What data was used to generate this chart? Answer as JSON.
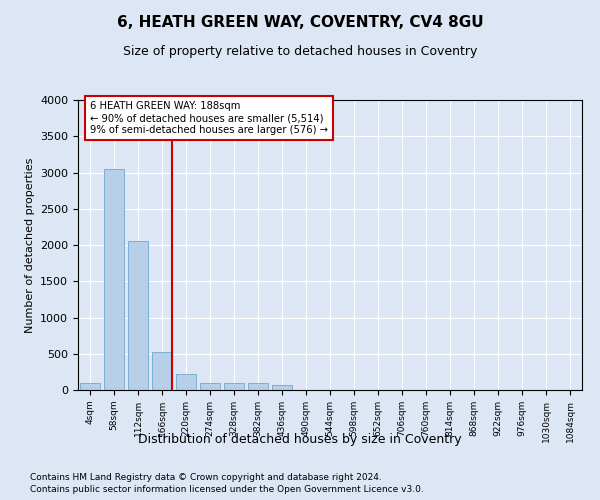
{
  "title": "6, HEATH GREEN WAY, COVENTRY, CV4 8GU",
  "subtitle": "Size of property relative to detached houses in Coventry",
  "xlabel": "Distribution of detached houses by size in Coventry",
  "ylabel": "Number of detached properties",
  "bin_labels": [
    "4sqm",
    "58sqm",
    "112sqm",
    "166sqm",
    "220sqm",
    "274sqm",
    "328sqm",
    "382sqm",
    "436sqm",
    "490sqm",
    "544sqm",
    "598sqm",
    "652sqm",
    "706sqm",
    "760sqm",
    "814sqm",
    "868sqm",
    "922sqm",
    "976sqm",
    "1030sqm",
    "1084sqm"
  ],
  "bar_heights": [
    100,
    3050,
    2050,
    530,
    220,
    90,
    90,
    90,
    70,
    0,
    0,
    0,
    0,
    0,
    0,
    0,
    0,
    0,
    0,
    0,
    0
  ],
  "bar_color": "#b8cfe8",
  "bar_edge_color": "#7aaed4",
  "vline_color": "#cc0000",
  "ylim": [
    0,
    4000
  ],
  "yticks": [
    0,
    500,
    1000,
    1500,
    2000,
    2500,
    3000,
    3500,
    4000
  ],
  "annotation_text": "6 HEATH GREEN WAY: 188sqm\n← 90% of detached houses are smaller (5,514)\n9% of semi-detached houses are larger (576) →",
  "annotation_box_color": "#cc0000",
  "footer_line1": "Contains HM Land Registry data © Crown copyright and database right 2024.",
  "footer_line2": "Contains public sector information licensed under the Open Government Licence v3.0.",
  "fig_bg_color": "#dce6f5",
  "plot_bg_color": "#dce6f5"
}
